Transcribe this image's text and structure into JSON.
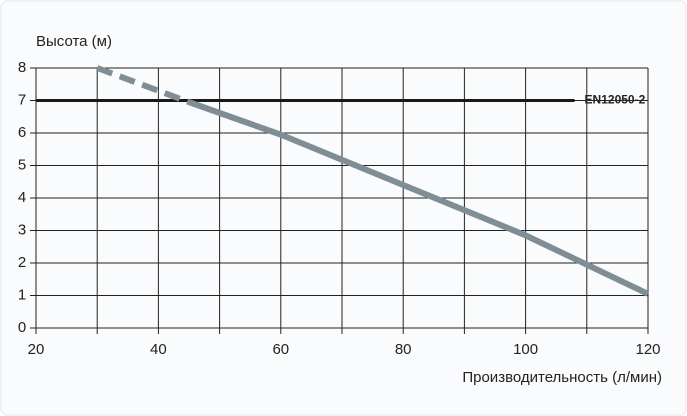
{
  "chart_data": {
    "type": "line",
    "y_label": "Высота (м)",
    "x_label": "Производительность (л/мин)",
    "xlim": [
      20,
      120
    ],
    "xticks": [
      20,
      40,
      60,
      80,
      100,
      120
    ],
    "xgrid": [
      20,
      30,
      40,
      50,
      60,
      70,
      80,
      90,
      100,
      110,
      120
    ],
    "ylim": [
      0,
      8
    ],
    "yticks": [
      0,
      1,
      2,
      3,
      4,
      5,
      6,
      7,
      8
    ],
    "grid": true,
    "series": [
      {
        "color": "#7f8d95",
        "dashed": true,
        "x": [
          30,
          45
        ],
        "values": [
          8,
          6.95
        ]
      },
      {
        "color": "#7f8d95",
        "dashed": false,
        "x": [
          45,
          60,
          80,
          100,
          120
        ],
        "values": [
          6.95,
          5.95,
          4.4,
          2.85,
          1.05
        ]
      }
    ],
    "reference": {
      "label": "EN12050-2",
      "value": 7,
      "x": [
        20,
        108
      ],
      "color": "#1a1a1a",
      "label_color": "#19a7c8"
    }
  }
}
